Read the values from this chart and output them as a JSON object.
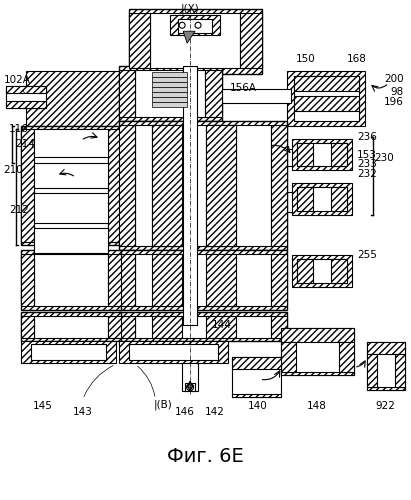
{
  "title": "Фиг. 6Е",
  "title_fontsize": 14,
  "background_color": "#ffffff",
  "labels": {
    "IX": "|(X)",
    "IB": "|(B)",
    "102A": "102A",
    "156A": "156A",
    "150": "150",
    "168": "168",
    "200": "200",
    "98": "98",
    "196": "196",
    "116": "116",
    "214": "214",
    "210": "210",
    "212": "212",
    "236": "236",
    "153": "153",
    "233": "233",
    "232": "232",
    "230": "230",
    "255": "255",
    "144": "144",
    "145": "145",
    "143": "143",
    "146": "146",
    "142": "142",
    "140": "140",
    "148": "148",
    "922": "922"
  }
}
